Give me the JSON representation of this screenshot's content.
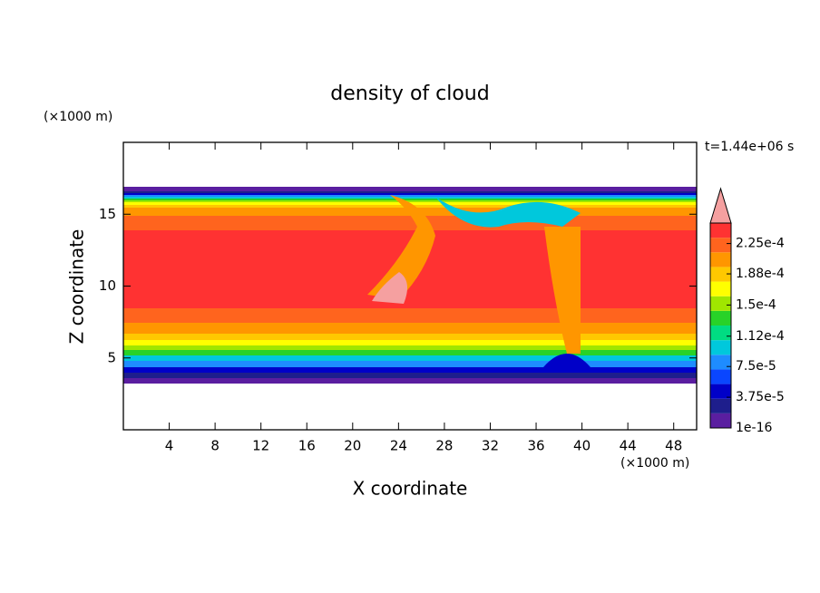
{
  "chart_data": {
    "type": "contour",
    "title": "density of cloud",
    "x_label": "X coordinate",
    "y_label": "Z coordinate",
    "x_unit": "(×1000 m)",
    "y_unit": "(×1000 m)",
    "time_label": "t=1.44e+06 s",
    "xlim": [
      0,
      50
    ],
    "xticks": [
      4,
      8,
      12,
      16,
      20,
      24,
      28,
      32,
      36,
      40,
      44,
      48
    ],
    "ylim": [
      0,
      20
    ],
    "yticks": [
      5,
      10,
      15
    ],
    "colorbar": {
      "clim": [
        1e-16,
        0.00025
      ],
      "ticks": [
        1e-16,
        {
          "value": 3.75e-05,
          "label": "3.75e-5"
        },
        {
          "value": 7.5e-05,
          "label": "7.5e-5"
        },
        {
          "value": 0.000112,
          "label": "1.12e-4"
        },
        {
          "value": 0.00015,
          "label": "1.5e-4"
        },
        {
          "value": 0.000188,
          "label": "1.88e-4"
        },
        {
          "value": 0.000225,
          "label": "2.25e-4"
        }
      ],
      "colors": [
        "#5a1ea0",
        "#1e1e8c",
        "#0000c8",
        "#0a46ff",
        "#1e8cff",
        "#00c8dc",
        "#00dc82",
        "#28d228",
        "#a0e600",
        "#ffff00",
        "#ffc800",
        "#ff9600",
        "#ff641e",
        "#ff3232"
      ],
      "extend_color": "#f5a0a0"
    }
  }
}
